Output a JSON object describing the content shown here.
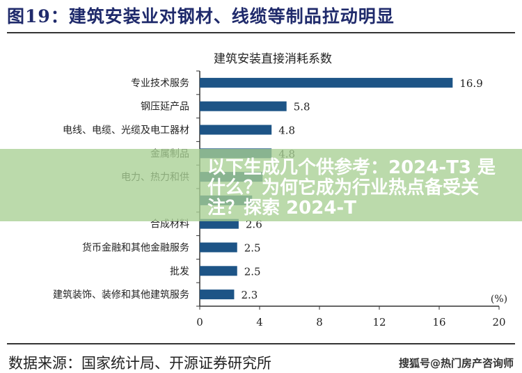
{
  "figure_title": "图19：建筑安装业对钢材、线缆等制品拉动明显",
  "source": "数据来源：国家统计局、开源证券研究所",
  "watermark": "搜狐号@热门房产咨询师",
  "banner": {
    "text": "以下生成几个供参考：2024-T3 是什么？为何它成为行业热点备受关注？探索 2024-T"
  },
  "colors": {
    "bar": "#1d5486",
    "title": "#1f2a6b",
    "banner": "#a8d094"
  },
  "chart_data": {
    "type": "bar",
    "orientation": "horizontal",
    "title": "建筑安装直接消耗系数",
    "unit_label": "(%)",
    "categories": [
      "专业技术服务",
      "钢压延产品",
      "电线、电缆、光缆及电工器材",
      "金属制品",
      "电力、热力和供",
      "",
      "合成材料",
      "货币金融和其他金融服务",
      "批发",
      "建筑装饰、装修和其他建筑服务"
    ],
    "values": [
      16.9,
      5.8,
      4.8,
      4.8,
      4.2,
      3.5,
      2.6,
      2.5,
      2.5,
      2.3
    ],
    "value_labels": [
      "16.9",
      "5.8",
      "4.8",
      "4.8",
      "",
      "",
      "2.6",
      "2.5",
      "2.5",
      "2.3"
    ],
    "xlim": [
      0,
      20
    ],
    "xticks": [
      "0",
      "4",
      "8",
      "12",
      "16",
      "20"
    ],
    "grid": false,
    "legend": "none"
  }
}
